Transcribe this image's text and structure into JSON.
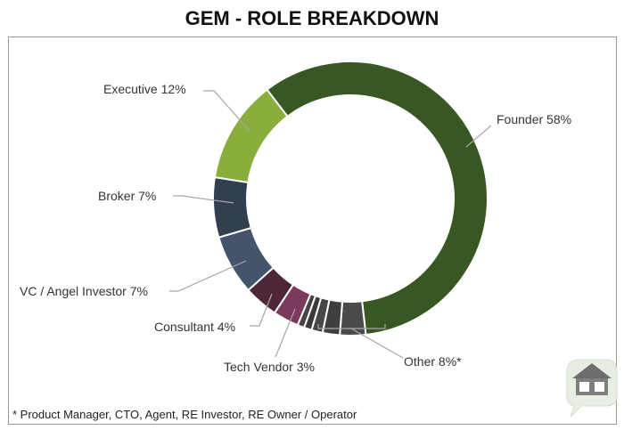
{
  "chart_data": {
    "type": "pie",
    "style": "donut",
    "title": "GEM - ROLE BREAKDOWN",
    "slices": [
      {
        "name": "Founder",
        "value": 58,
        "label": "Founder 58%",
        "color": "#385723"
      },
      {
        "name": "Other",
        "value": 8,
        "label": "Other 8%*",
        "color": "#404040",
        "sub_values": [
          3,
          2,
          1.3,
          0.9,
          0.8
        ]
      },
      {
        "name": "Tech Vendor",
        "value": 3,
        "label": "Tech Vendor 3%",
        "color": "#7a3b5e"
      },
      {
        "name": "Consultant",
        "value": 4,
        "label": "Consultant 4%",
        "color": "#4e2639"
      },
      {
        "name": "VC / Angel Investor",
        "value": 7,
        "label": "VC / Angel Investor 7%",
        "color": "#44546a"
      },
      {
        "name": "Broker",
        "value": 7,
        "label": "Broker 7%",
        "color": "#323f4f"
      },
      {
        "name": "Executive",
        "value": 12,
        "label": "Executive 12%",
        "color": "#8aae3c"
      }
    ],
    "footnote": "* Product Manager, CTO, Agent, RE Investor, RE Owner / Operator"
  },
  "logo": {
    "name": "house-logo"
  }
}
